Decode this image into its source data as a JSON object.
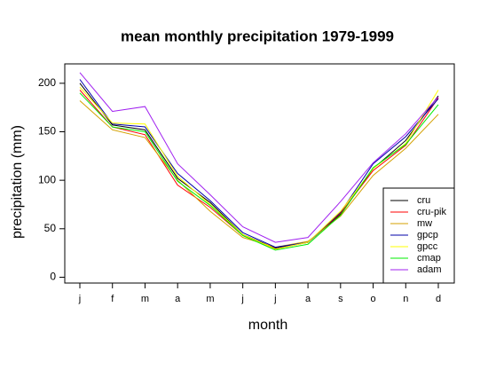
{
  "chart_data": {
    "type": "line",
    "title": "mean monthly precipitation 1979-1999",
    "x_label": "month",
    "y_label": "precipitation (mm)",
    "categories": [
      "j",
      "f",
      "m",
      "a",
      "m",
      "j",
      "j",
      "a",
      "s",
      "o",
      "n",
      "d"
    ],
    "ylim": [
      -6,
      220
    ],
    "yticks": [
      0,
      50,
      100,
      150,
      200
    ],
    "grid": false,
    "legend_position": "bottom-right",
    "series": [
      {
        "name": "cru",
        "color": "#000000",
        "values": [
          200,
          157,
          152,
          102,
          77,
          44,
          30,
          36,
          65,
          112,
          141,
          187
        ]
      },
      {
        "name": "cru-pik",
        "color": "#ff0000",
        "values": [
          193,
          155,
          147,
          95,
          72,
          43,
          29,
          36,
          66,
          110,
          136,
          185
        ]
      },
      {
        "name": "mw",
        "color": "#d4a000",
        "values": [
          182,
          152,
          144,
          100,
          68,
          41,
          31,
          37,
          63,
          105,
          133,
          168
        ]
      },
      {
        "name": "gpcp",
        "color": "#0000aa",
        "values": [
          204,
          158,
          155,
          107,
          79,
          46,
          31,
          36,
          67,
          117,
          145,
          184
        ]
      },
      {
        "name": "gpcc",
        "color": "#ffff00",
        "values": [
          196,
          159,
          158,
          104,
          75,
          44,
          29,
          36,
          68,
          112,
          138,
          193
        ]
      },
      {
        "name": "cmap",
        "color": "#00ee00",
        "values": [
          190,
          155,
          150,
          99,
          74,
          43,
          28,
          34,
          64,
          113,
          137,
          178
        ]
      },
      {
        "name": "adam",
        "color": "#a020f0",
        "values": [
          211,
          171,
          176,
          117,
          85,
          52,
          36,
          41,
          78,
          118,
          148,
          186
        ]
      }
    ]
  }
}
